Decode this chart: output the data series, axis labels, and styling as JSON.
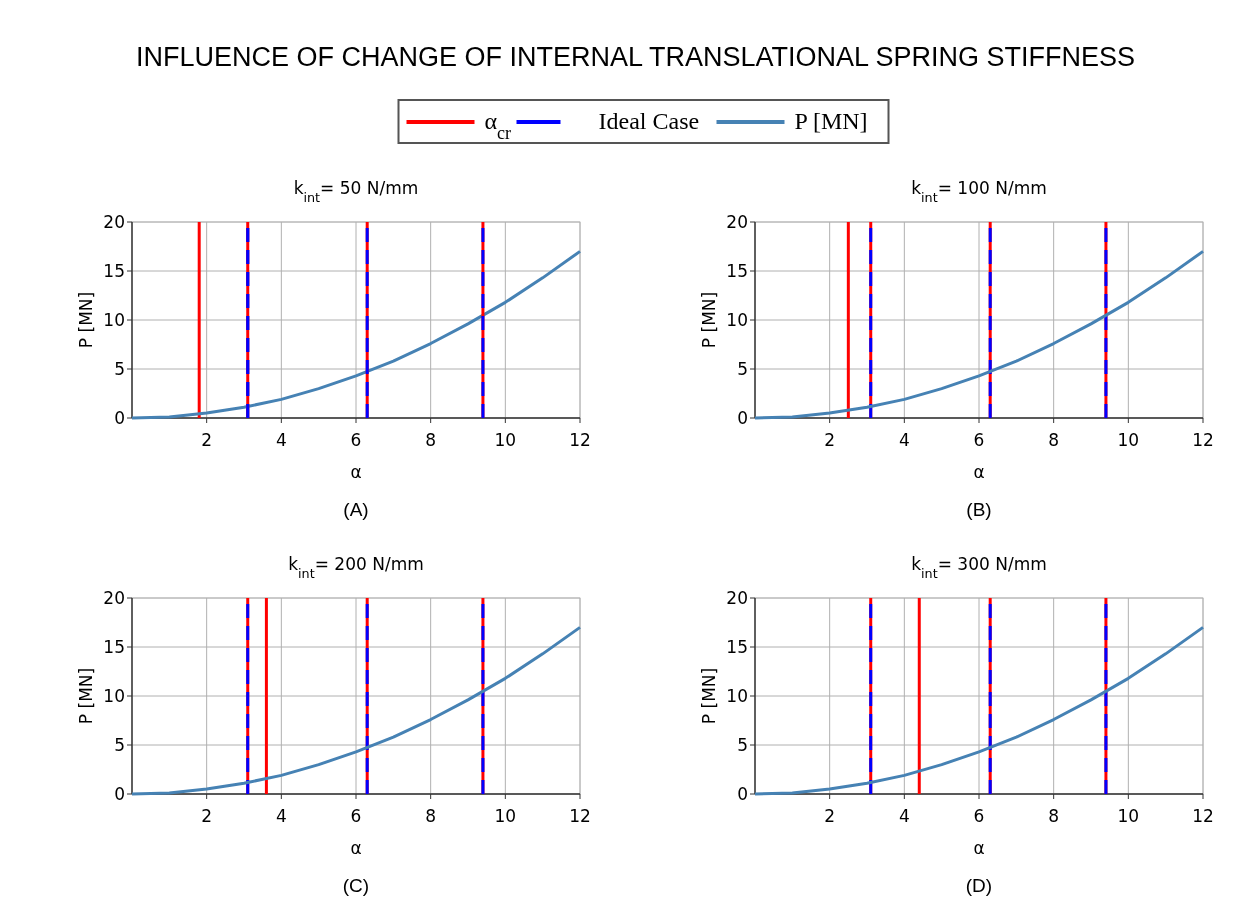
{
  "chart_data": [
    {
      "type": "line",
      "title": "INFLUENCE OF CHANGE OF INTERNAL TRANSLATIONAL SPRING STIFFNESS",
      "subtitle": "k$_{int}$= 50 N/mm",
      "xlabel": "α",
      "ylabel": "P [MN]",
      "annotations": [
        "(A)"
      ],
      "xlim": [
        0,
        12
      ],
      "ylim": [
        0,
        20
      ],
      "xticks": [
        2,
        4,
        6,
        8,
        10,
        12
      ],
      "yticks": [
        0,
        5,
        10,
        15,
        20
      ],
      "grid": true,
      "legend": "top",
      "series": [
        {
          "name": "α$_{cr}$",
          "color": "#ff0000",
          "line_style": "solid",
          "x": [
            1.8,
            1.8
          ],
          "values": [
            0,
            20
          ]
        },
        {
          "name": "Ideal Case",
          "color": "#0000ff",
          "line_style": "dashed",
          "x": [
            3.1,
            3.1
          ],
          "values": [
            0,
            20
          ]
        },
        {
          "name": "P [MN]",
          "color": "#4682b4",
          "line_style": "solid",
          "x": [
            0,
            1,
            2,
            3,
            4,
            5,
            6,
            7,
            8,
            9,
            10,
            11,
            12
          ],
          "values": [
            0,
            0.1,
            0.5,
            1.1,
            1.9,
            3,
            4.3,
            5.8,
            7.6,
            9.6,
            11.8,
            14.3,
            17
          ]
        },
        {
          "color": "#ff0000",
          "line_style": "solid",
          "x": [
            3.1,
            3.1
          ],
          "values": [
            0,
            20
          ]
        },
        {
          "color": "#ff0000",
          "line_style": "solid",
          "x": [
            6.3,
            6.3
          ],
          "values": [
            0,
            20
          ]
        },
        {
          "color": "#ff0000",
          "line_style": "solid",
          "x": [
            9.4,
            9.4
          ],
          "values": [
            0,
            20
          ]
        },
        {
          "color": "#0000ff",
          "line_style": "dashed",
          "x": [
            3.1,
            3.1
          ],
          "values": [
            0,
            20
          ]
        },
        {
          "color": "#0000ff",
          "line_style": "dashed",
          "x": [
            6.3,
            6.3
          ],
          "values": [
            0,
            20
          ]
        },
        {
          "color": "#0000ff",
          "line_style": "dashed",
          "x": [
            9.4,
            9.4
          ],
          "values": [
            0,
            20
          ]
        }
      ]
    },
    {
      "type": "line",
      "subtitle": "k$_{int}$= 100 N/mm",
      "xlabel": "α",
      "ylabel": "P [MN]",
      "annotations": [
        "(B)"
      ],
      "xlim": [
        0,
        12
      ],
      "ylim": [
        0,
        20
      ],
      "xticks": [
        2,
        4,
        6,
        8,
        10,
        12
      ],
      "yticks": [
        0,
        5,
        10,
        15,
        20
      ],
      "grid": true,
      "series": [
        {
          "color": "#ff0000",
          "line_style": "solid",
          "x": [
            2.5,
            2.5
          ],
          "values": [
            0,
            20
          ]
        },
        {
          "color": "#ff0000",
          "line_style": "solid",
          "x": [
            3.1,
            3.1
          ],
          "values": [
            0,
            20
          ]
        },
        {
          "color": "#ff0000",
          "line_style": "solid",
          "x": [
            6.3,
            6.3
          ],
          "values": [
            0,
            20
          ]
        },
        {
          "color": "#ff0000",
          "line_style": "solid",
          "x": [
            9.4,
            9.4
          ],
          "values": [
            0,
            20
          ]
        },
        {
          "color": "#0000ff",
          "line_style": "dashed",
          "x": [
            3.1,
            3.1
          ],
          "values": [
            0,
            20
          ]
        },
        {
          "color": "#0000ff",
          "line_style": "dashed",
          "x": [
            6.3,
            6.3
          ],
          "values": [
            0,
            20
          ]
        },
        {
          "color": "#0000ff",
          "line_style": "dashed",
          "x": [
            9.4,
            9.4
          ],
          "values": [
            0,
            20
          ]
        },
        {
          "color": "#4682b4",
          "line_style": "solid",
          "x": [
            0,
            1,
            2,
            3,
            4,
            5,
            6,
            7,
            8,
            9,
            10,
            11,
            12
          ],
          "values": [
            0,
            0.1,
            0.5,
            1.1,
            1.9,
            3,
            4.3,
            5.8,
            7.6,
            9.6,
            11.8,
            14.3,
            17
          ]
        }
      ]
    },
    {
      "type": "line",
      "subtitle": "k$_{int}$= 200 N/mm",
      "xlabel": "α",
      "ylabel": "P [MN]",
      "annotations": [
        "(C)"
      ],
      "xlim": [
        0,
        12
      ],
      "ylim": [
        0,
        20
      ],
      "xticks": [
        2,
        4,
        6,
        8,
        10,
        12
      ],
      "yticks": [
        0,
        5,
        10,
        15,
        20
      ],
      "grid": true,
      "series": [
        {
          "color": "#ff0000",
          "line_style": "solid",
          "x": [
            3.1,
            3.1
          ],
          "values": [
            0,
            20
          ]
        },
        {
          "color": "#ff0000",
          "line_style": "solid",
          "x": [
            3.6,
            3.6
          ],
          "values": [
            0,
            20
          ]
        },
        {
          "color": "#ff0000",
          "line_style": "solid",
          "x": [
            6.3,
            6.3
          ],
          "values": [
            0,
            20
          ]
        },
        {
          "color": "#ff0000",
          "line_style": "solid",
          "x": [
            9.4,
            9.4
          ],
          "values": [
            0,
            20
          ]
        },
        {
          "color": "#0000ff",
          "line_style": "dashed",
          "x": [
            3.1,
            3.1
          ],
          "values": [
            0,
            20
          ]
        },
        {
          "color": "#0000ff",
          "line_style": "dashed",
          "x": [
            6.3,
            6.3
          ],
          "values": [
            0,
            20
          ]
        },
        {
          "color": "#0000ff",
          "line_style": "dashed",
          "x": [
            9.4,
            9.4
          ],
          "values": [
            0,
            20
          ]
        },
        {
          "color": "#4682b4",
          "line_style": "solid",
          "x": [
            0,
            1,
            2,
            3,
            4,
            5,
            6,
            7,
            8,
            9,
            10,
            11,
            12
          ],
          "values": [
            0,
            0.1,
            0.5,
            1.1,
            1.9,
            3,
            4.3,
            5.8,
            7.6,
            9.6,
            11.8,
            14.3,
            17
          ]
        }
      ]
    },
    {
      "type": "line",
      "subtitle": "k$_{int}$= 300 N/mm",
      "xlabel": "α",
      "ylabel": "P [MN]",
      "annotations": [
        "(D)"
      ],
      "xlim": [
        0,
        12
      ],
      "ylim": [
        0,
        20
      ],
      "xticks": [
        2,
        4,
        6,
        8,
        10,
        12
      ],
      "yticks": [
        0,
        5,
        10,
        15,
        20
      ],
      "grid": true,
      "series": [
        {
          "color": "#ff0000",
          "line_style": "solid",
          "x": [
            3.1,
            3.1
          ],
          "values": [
            0,
            20
          ]
        },
        {
          "color": "#ff0000",
          "line_style": "solid",
          "x": [
            4.4,
            4.4
          ],
          "values": [
            0,
            20
          ]
        },
        {
          "color": "#ff0000",
          "line_style": "solid",
          "x": [
            6.3,
            6.3
          ],
          "values": [
            0,
            20
          ]
        },
        {
          "color": "#ff0000",
          "line_style": "solid",
          "x": [
            9.4,
            9.4
          ],
          "values": [
            0,
            20
          ]
        },
        {
          "color": "#0000ff",
          "line_style": "dashed",
          "x": [
            3.1,
            3.1
          ],
          "values": [
            0,
            20
          ]
        },
        {
          "color": "#0000ff",
          "line_style": "dashed",
          "x": [
            6.3,
            6.3
          ],
          "values": [
            0,
            20
          ]
        },
        {
          "color": "#0000ff",
          "line_style": "dashed",
          "x": [
            9.4,
            9.4
          ],
          "values": [
            0,
            20
          ]
        },
        {
          "color": "#4682b4",
          "line_style": "solid",
          "x": [
            0,
            1,
            2,
            3,
            4,
            5,
            6,
            7,
            8,
            9,
            10,
            11,
            12
          ],
          "values": [
            0,
            0.1,
            0.5,
            1.1,
            1.9,
            3,
            4.3,
            5.8,
            7.6,
            9.6,
            11.8,
            14.3,
            17
          ]
        }
      ]
    }
  ]
}
